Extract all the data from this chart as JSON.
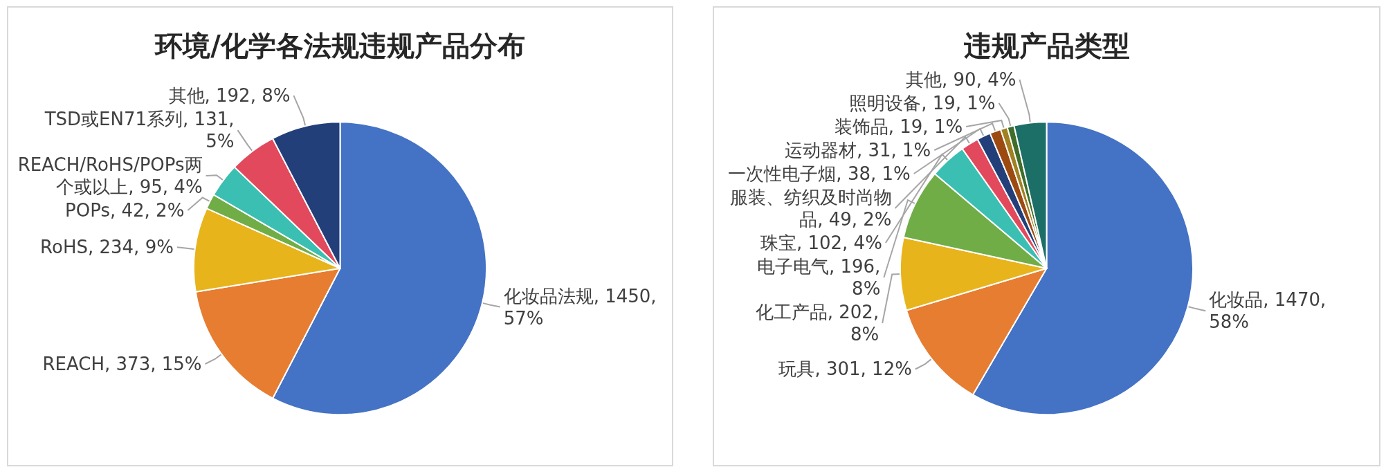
{
  "chart_data": [
    {
      "type": "pie",
      "title": "环境/化学各法规违规产品分布",
      "categories": [
        "化妆品法规",
        "REACH",
        "RoHS",
        "POPs",
        "REACH/RoHS/POPs两个或以上",
        "TSD或EN71系列",
        "其他"
      ],
      "values": [
        1450,
        373,
        234,
        42,
        95,
        131,
        192
      ],
      "colors": [
        "#4472c4",
        "#e67d31",
        "#e8b41c",
        "#70ad47",
        "#3bbfb2",
        "#e2495d",
        "#223f7a"
      ],
      "value_labels": [
        "1450, 57%",
        "373, 15%",
        "234, 9%",
        "42, 2%",
        "95, 4%",
        "131, 5%",
        "192, 8%"
      ]
    },
    {
      "type": "pie",
      "title": "违规产品类型",
      "categories": [
        "化妆品",
        "玩具",
        "化工产品",
        "电子电气",
        "珠宝",
        "服装、纺织及时尚物品",
        "一次性电子烟",
        "运动器材",
        "装饰品",
        "照明设备",
        "其他"
      ],
      "values": [
        1470,
        301,
        202,
        196,
        102,
        49,
        38,
        31,
        19,
        19,
        90
      ],
      "colors": [
        "#4472c4",
        "#e67d31",
        "#e8b41c",
        "#70ad47",
        "#3bbfb2",
        "#e2495d",
        "#223f7a",
        "#9c4a12",
        "#a08020",
        "#3f6e2a",
        "#1c6f66"
      ],
      "value_labels": [
        "1470, 58%",
        "301, 12%",
        "202, 8%",
        "196, 8%",
        "102, 4%",
        "49, 2%",
        "38, 1%",
        "31, 1%",
        "19, 1%",
        "19, 1%",
        "90, 4%"
      ]
    }
  ]
}
